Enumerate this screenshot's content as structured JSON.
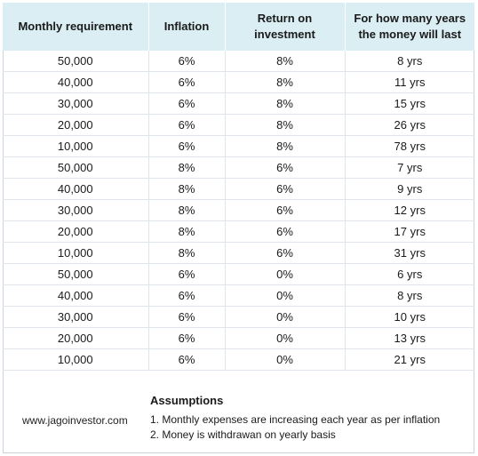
{
  "table": {
    "headers": {
      "monthly_requirement": "Monthly requirement",
      "inflation": "Inflation",
      "return_line1": "Return on",
      "return_line2": "investment",
      "years_line1": "For how many years",
      "years_line2": "the money will last"
    },
    "rows": [
      {
        "monthly": "50,000",
        "inflation": "6%",
        "return": "8%",
        "years": "8 yrs"
      },
      {
        "monthly": "40,000",
        "inflation": "6%",
        "return": "8%",
        "years": "11 yrs"
      },
      {
        "monthly": "30,000",
        "inflation": "6%",
        "return": "8%",
        "years": "15 yrs"
      },
      {
        "monthly": "20,000",
        "inflation": "6%",
        "return": "8%",
        "years": "26 yrs"
      },
      {
        "monthly": "10,000",
        "inflation": "6%",
        "return": "8%",
        "years": "78 yrs"
      },
      {
        "monthly": "50,000",
        "inflation": "8%",
        "return": "6%",
        "years": "7 yrs"
      },
      {
        "monthly": "40,000",
        "inflation": "8%",
        "return": "6%",
        "years": "9 yrs"
      },
      {
        "monthly": "30,000",
        "inflation": "8%",
        "return": "6%",
        "years": "12 yrs"
      },
      {
        "monthly": "20,000",
        "inflation": "8%",
        "return": "6%",
        "years": "17 yrs"
      },
      {
        "monthly": "10,000",
        "inflation": "8%",
        "return": "6%",
        "years": "31 yrs"
      },
      {
        "monthly": "50,000",
        "inflation": "6%",
        "return": "0%",
        "years": "6 yrs"
      },
      {
        "monthly": "40,000",
        "inflation": "6%",
        "return": "0%",
        "years": "8 yrs"
      },
      {
        "monthly": "30,000",
        "inflation": "6%",
        "return": "0%",
        "years": "10 yrs"
      },
      {
        "monthly": "20,000",
        "inflation": "6%",
        "return": "0%",
        "years": "13 yrs"
      },
      {
        "monthly": "10,000",
        "inflation": "6%",
        "return": "0%",
        "years": "21 yrs"
      }
    ]
  },
  "footer": {
    "website": "www.jagoinvestor.com",
    "assumptions_title": "Assumptions",
    "assumptions": [
      "1. Monthly expenses are increasing each year as per inflation",
      "2. Money is withdrawan on yearly basis"
    ]
  },
  "colors": {
    "header_background": "#daeef3",
    "grid_line": "#dfe5ea"
  }
}
